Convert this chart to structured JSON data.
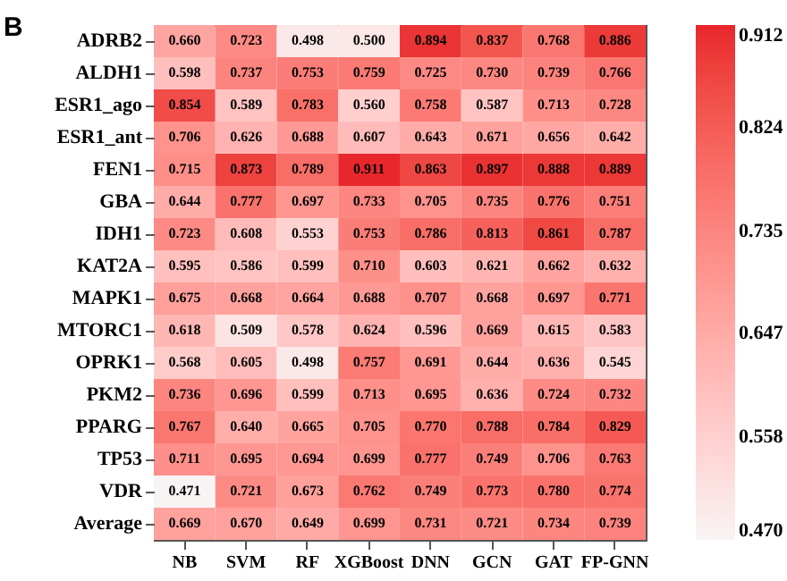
{
  "chart_data": {
    "type": "heatmap",
    "annotations": [
      "B"
    ],
    "categories": [
      "NB",
      "SVM",
      "RF",
      "XGBoost",
      "DNN",
      "GCN",
      "GAT",
      "FP-GNN"
    ],
    "y_categories": [
      "ADRB2",
      "ALDH1",
      "ESR1_ago",
      "ESR1_ant",
      "FEN1",
      "GBA",
      "IDH1",
      "KAT2A",
      "MAPK1",
      "MTORC1",
      "OPRK1",
      "PKM2",
      "PPARG",
      "TP53",
      "VDR",
      "Average"
    ],
    "cells": [
      [
        0.66,
        0.723,
        0.498,
        0.5,
        0.894,
        0.837,
        0.768,
        0.886
      ],
      [
        0.598,
        0.737,
        0.753,
        0.759,
        0.725,
        0.73,
        0.739,
        0.766
      ],
      [
        0.854,
        0.589,
        0.783,
        0.56,
        0.758,
        0.587,
        0.713,
        0.728
      ],
      [
        0.706,
        0.626,
        0.688,
        0.607,
        0.643,
        0.671,
        0.656,
        0.642
      ],
      [
        0.715,
        0.873,
        0.789,
        0.911,
        0.863,
        0.897,
        0.888,
        0.889
      ],
      [
        0.644,
        0.777,
        0.697,
        0.733,
        0.705,
        0.735,
        0.776,
        0.751
      ],
      [
        0.723,
        0.608,
        0.553,
        0.753,
        0.786,
        0.813,
        0.861,
        0.787
      ],
      [
        0.595,
        0.586,
        0.599,
        0.71,
        0.603,
        0.621,
        0.662,
        0.632
      ],
      [
        0.675,
        0.668,
        0.664,
        0.688,
        0.707,
        0.668,
        0.697,
        0.771
      ],
      [
        0.618,
        0.509,
        0.578,
        0.624,
        0.596,
        0.669,
        0.615,
        0.583
      ],
      [
        0.568,
        0.605,
        0.498,
        0.757,
        0.691,
        0.644,
        0.636,
        0.545
      ],
      [
        0.736,
        0.696,
        0.599,
        0.713,
        0.695,
        0.636,
        0.724,
        0.732
      ],
      [
        0.767,
        0.64,
        0.665,
        0.705,
        0.77,
        0.788,
        0.784,
        0.829
      ],
      [
        0.711,
        0.695,
        0.694,
        0.699,
        0.777,
        0.749,
        0.706,
        0.763
      ],
      [
        0.471,
        0.721,
        0.673,
        0.762,
        0.749,
        0.773,
        0.78,
        0.774
      ],
      [
        0.669,
        0.67,
        0.649,
        0.699,
        0.731,
        0.721,
        0.734,
        0.739
      ]
    ],
    "cell_labels": [
      [
        "0.660",
        "0.723",
        "0.498",
        "0.500",
        "0.894",
        "0.837",
        "0.768",
        "0.886"
      ],
      [
        "0.598",
        "0.737",
        "0.753",
        "0.759",
        "0.725",
        "0.730",
        "0.739",
        "0.766"
      ],
      [
        "0.854",
        "0.589",
        "0.783",
        "0.560",
        "0.758",
        "0.587",
        "0.713",
        "0.728"
      ],
      [
        "0.706",
        "0.626",
        "0.688",
        "0.607",
        "0.643",
        "0.671",
        "0.656",
        "0.642"
      ],
      [
        "0.715",
        "0.873",
        "0.789",
        "0.911",
        "0.863",
        "0.897",
        "0.888",
        "0.889"
      ],
      [
        "0.644",
        "0.777",
        "0.697",
        "0.733",
        "0.705",
        "0.735",
        "0.776",
        "0.751"
      ],
      [
        "0.723",
        "0.608",
        "0.553",
        "0.753",
        "0.786",
        "0.813",
        "0.861",
        "0.787"
      ],
      [
        "0.595",
        "0.586",
        "0.599",
        "0.710",
        "0.603",
        "0.621",
        "0.662",
        "0.632"
      ],
      [
        "0.675",
        "0.668",
        "0.664",
        "0.688",
        "0.707",
        "0.668",
        "0.697",
        "0.771"
      ],
      [
        "0.618",
        "0.509",
        "0.578",
        "0.624",
        "0.596",
        "0.669",
        "0.615",
        "0.583"
      ],
      [
        "0.568",
        "0.605",
        "0.498",
        "0.757",
        "0.691",
        "0.644",
        "0.636",
        "0.545"
      ],
      [
        "0.736",
        "0.696",
        "0.599",
        "0.713",
        "0.695",
        "0.636",
        "0.724",
        "0.732"
      ],
      [
        "0.767",
        "0.640",
        "0.665",
        "0.705",
        "0.770",
        "0.788",
        "0.784",
        "0.829"
      ],
      [
        "0.711",
        "0.695",
        "0.694",
        "0.699",
        "0.777",
        "0.749",
        "0.706",
        "0.763"
      ],
      [
        "0.471",
        "0.721",
        "0.673",
        "0.762",
        "0.749",
        "0.773",
        "0.780",
        "0.774"
      ],
      [
        "0.669",
        "0.670",
        "0.649",
        "0.699",
        "0.731",
        "0.721",
        "0.734",
        "0.739"
      ]
    ],
    "clim": [
      0.47,
      0.912
    ],
    "cticks": [
      {
        "value": 0.47,
        "label": "0.470"
      },
      {
        "value": 0.558,
        "label": "0.558"
      },
      {
        "value": 0.647,
        "label": "0.647"
      },
      {
        "value": 0.735,
        "label": "0.735"
      },
      {
        "value": 0.824,
        "label": "0.824"
      },
      {
        "value": 0.912,
        "label": "0.912"
      }
    ],
    "colors": [
      "#f8f4f4",
      "#e8262c"
    ]
  }
}
